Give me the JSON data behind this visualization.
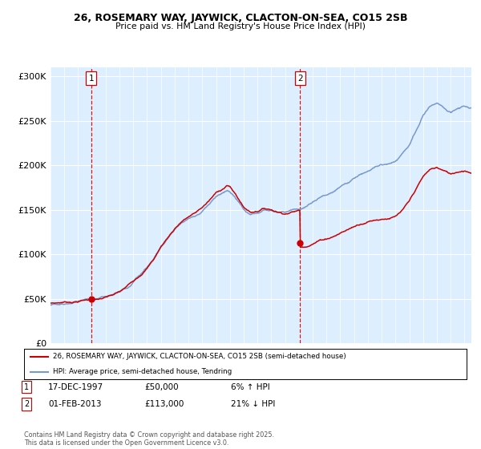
{
  "title": "26, ROSEMARY WAY, JAYWICK, CLACTON-ON-SEA, CO15 2SB",
  "subtitle": "Price paid vs. HM Land Registry's House Price Index (HPI)",
  "legend_line1": "26, ROSEMARY WAY, JAYWICK, CLACTON-ON-SEA, CO15 2SB (semi-detached house)",
  "legend_line2": "HPI: Average price, semi-detached house, Tendring",
  "annotation1_label": "1",
  "annotation1_date": "17-DEC-1997",
  "annotation1_price": "£50,000",
  "annotation1_hpi": "6% ↑ HPI",
  "annotation2_label": "2",
  "annotation2_date": "01-FEB-2013",
  "annotation2_price": "£113,000",
  "annotation2_hpi": "21% ↓ HPI",
  "footer": "Contains HM Land Registry data © Crown copyright and database right 2025.\nThis data is licensed under the Open Government Licence v3.0.",
  "hpi_color": "#7799cc",
  "price_color": "#cc0000",
  "vline_color": "#cc0000",
  "background_color": "#ddeeff",
  "ylim": [
    0,
    310000
  ],
  "yticks": [
    0,
    50000,
    100000,
    150000,
    200000,
    250000,
    300000
  ],
  "ytick_labels": [
    "£0",
    "£50K",
    "£100K",
    "£150K",
    "£200K",
    "£250K",
    "£300K"
  ],
  "xstart": 1995.0,
  "xend": 2025.5
}
